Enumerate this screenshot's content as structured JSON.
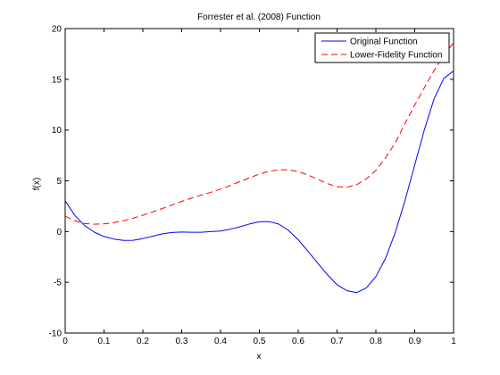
{
  "chart_data": {
    "type": "line",
    "title": "Forrester et al. (2008) Function",
    "xlabel": "x",
    "ylabel": "f(x)",
    "xlim": [
      0,
      1
    ],
    "ylim": [
      -10,
      20
    ],
    "xticks": [
      0,
      0.1,
      0.2,
      0.3,
      0.4,
      0.5,
      0.6,
      0.7,
      0.8,
      0.9,
      1
    ],
    "xtick_labels": [
      "0",
      "0.1",
      "0.2",
      "0.3",
      "0.4",
      "0.5",
      "0.6",
      "0.7",
      "0.8",
      "0.9",
      "1"
    ],
    "yticks": [
      -10,
      -5,
      0,
      5,
      10,
      15,
      20
    ],
    "ytick_labels": [
      "-10",
      "-5",
      "0",
      "5",
      "10",
      "15",
      "20"
    ],
    "grid": false,
    "legend_position": "top-right",
    "series": [
      {
        "name": "Original Function",
        "color": "#0000ff",
        "dash": "solid",
        "x": [
          0,
          0.025,
          0.05,
          0.075,
          0.1,
          0.125,
          0.15,
          0.175,
          0.2,
          0.225,
          0.25,
          0.275,
          0.3,
          0.325,
          0.35,
          0.375,
          0.4,
          0.425,
          0.45,
          0.475,
          0.5,
          0.525,
          0.55,
          0.575,
          0.6,
          0.625,
          0.65,
          0.675,
          0.7,
          0.725,
          0.75,
          0.775,
          0.8,
          0.825,
          0.85,
          0.875,
          0.9,
          0.925,
          0.95,
          0.975,
          1
        ],
        "y": [
          3.03,
          1.59,
          0.58,
          -0.06,
          -0.49,
          -0.74,
          -0.88,
          -0.86,
          -0.69,
          -0.46,
          -0.23,
          -0.09,
          -0.05,
          -0.07,
          -0.07,
          -0.01,
          0.06,
          0.23,
          0.47,
          0.75,
          0.96,
          0.98,
          0.73,
          0.12,
          -0.81,
          -1.93,
          -3.11,
          -4.25,
          -5.24,
          -5.82,
          -6.02,
          -5.57,
          -4.44,
          -2.62,
          -0.07,
          3.06,
          6.57,
          10.06,
          13.11,
          15.09,
          15.83
        ]
      },
      {
        "name": "Lower-Fidelity Function",
        "color": "#ff0000",
        "dash": "dashed",
        "x": [
          0,
          0.025,
          0.05,
          0.075,
          0.1,
          0.125,
          0.15,
          0.175,
          0.2,
          0.225,
          0.25,
          0.275,
          0.3,
          0.325,
          0.35,
          0.375,
          0.4,
          0.425,
          0.45,
          0.475,
          0.5,
          0.525,
          0.55,
          0.575,
          0.6,
          0.625,
          0.65,
          0.675,
          0.7,
          0.725,
          0.75,
          0.775,
          0.8,
          0.825,
          0.85,
          0.875,
          0.9,
          0.925,
          0.95,
          0.975,
          1
        ],
        "y": [
          1.52,
          1.05,
          0.79,
          0.72,
          0.76,
          0.87,
          1.06,
          1.31,
          1.61,
          1.93,
          2.27,
          2.61,
          2.97,
          3.29,
          3.58,
          3.87,
          4.18,
          4.53,
          4.92,
          5.31,
          5.66,
          5.94,
          6.09,
          6.08,
          5.91,
          5.58,
          5.15,
          4.73,
          4.42,
          4.37,
          4.61,
          5.17,
          6.03,
          7.27,
          8.76,
          10.64,
          12.47,
          14.19,
          15.88,
          17.35,
          18.62
        ]
      }
    ]
  }
}
